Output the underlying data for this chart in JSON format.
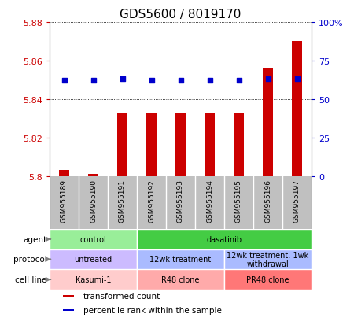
{
  "title": "GDS5600 / 8019170",
  "samples": [
    "GSM955189",
    "GSM955190",
    "GSM955191",
    "GSM955192",
    "GSM955193",
    "GSM955194",
    "GSM955195",
    "GSM955196",
    "GSM955197"
  ],
  "transformed_count": [
    5.803,
    5.801,
    5.833,
    5.833,
    5.833,
    5.833,
    5.833,
    5.856,
    5.87
  ],
  "percentile_rank": [
    62,
    62,
    63,
    62,
    62,
    62,
    62,
    63,
    63
  ],
  "ylim": [
    5.8,
    5.88
  ],
  "yticks": [
    5.8,
    5.82,
    5.84,
    5.86,
    5.88
  ],
  "y2ticks": [
    0,
    25,
    50,
    75,
    100
  ],
  "y2labels": [
    "0",
    "25",
    "50",
    "75",
    "100%"
  ],
  "bar_color": "#cc0000",
  "dot_color": "#0000cc",
  "title_fontsize": 11,
  "left_label_color": "#cc0000",
  "right_label_color": "#0000cc",
  "xlabels_bg": "#c0c0c0",
  "agent_groups": [
    {
      "label": "control",
      "start": 0,
      "end": 3,
      "color": "#99ee99"
    },
    {
      "label": "dasatinib",
      "start": 3,
      "end": 9,
      "color": "#44cc44"
    }
  ],
  "protocol_groups": [
    {
      "label": "untreated",
      "start": 0,
      "end": 3,
      "color": "#ccbbff"
    },
    {
      "label": "12wk treatment",
      "start": 3,
      "end": 6,
      "color": "#aabbff"
    },
    {
      "label": "12wk treatment, 1wk\nwithdrawal",
      "start": 6,
      "end": 9,
      "color": "#aabbff"
    }
  ],
  "cellline_groups": [
    {
      "label": "Kasumi-1",
      "start": 0,
      "end": 3,
      "color": "#ffcccc"
    },
    {
      "label": "R48 clone",
      "start": 3,
      "end": 6,
      "color": "#ffaaaa"
    },
    {
      "label": "PR48 clone",
      "start": 6,
      "end": 9,
      "color": "#ff7777"
    }
  ],
  "row_labels": [
    "agent",
    "protocol",
    "cell line"
  ],
  "legend_items": [
    {
      "color": "#cc0000",
      "label": "transformed count"
    },
    {
      "color": "#0000cc",
      "label": "percentile rank within the sample"
    }
  ]
}
